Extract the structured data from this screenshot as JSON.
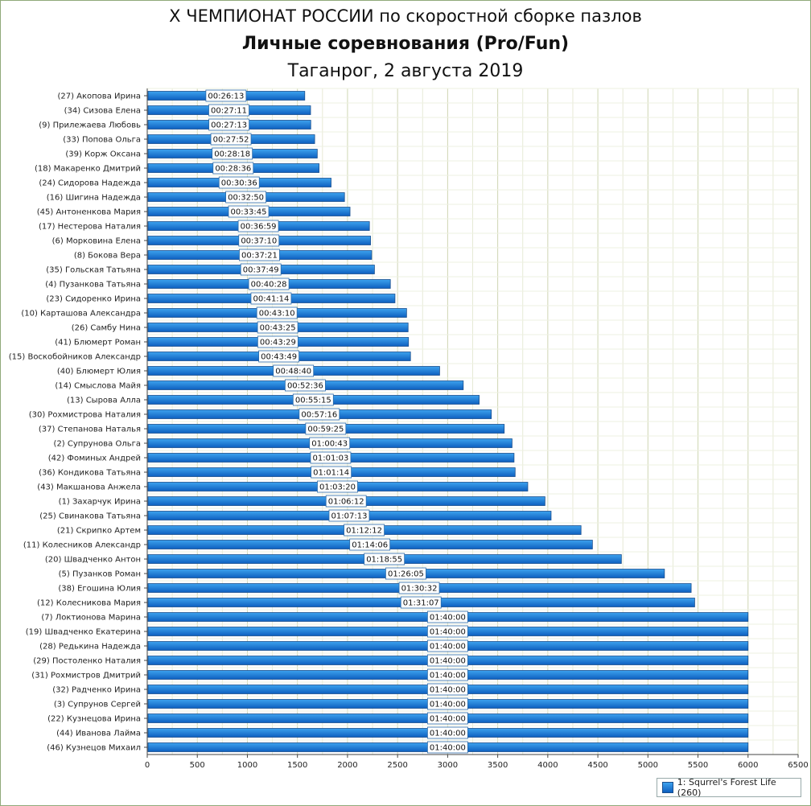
{
  "header": {
    "title": "X ЧЕМПИОНАТ РОССИИ по скоростной сборке пазлов",
    "subtitle": "Личные соревнования (Pro/Fun)",
    "place_date": "Таганрог, 2 августа 2019"
  },
  "legend": {
    "label": "1: Squrrel's Forest Life (260)"
  },
  "colors": {
    "bar_top": "#3da2ee",
    "bar_bottom": "#0e5fbf",
    "bar_border": "#1a4f8e",
    "grid": "#d6dcc0",
    "frame": "#8fa97a"
  },
  "chart_data": {
    "type": "bar",
    "orientation": "horizontal",
    "title": "",
    "xlabel": "",
    "ylabel": "",
    "xlim": [
      0,
      6500
    ],
    "x_ticks": [
      0,
      500,
      1000,
      1500,
      2000,
      2500,
      3000,
      3500,
      4000,
      4500,
      5000,
      5500,
      6000,
      6500
    ],
    "grid": true,
    "legend_position": "bottom-right",
    "series_name": "1: Squrrel's Forest Life (260)",
    "categories": [
      "(27) Акопова Ирина",
      "(34) Сизова Елена",
      "(9) Прилежаева Любовь",
      "(33) Попова Ольга",
      "(39) Корж Оксана",
      "(18) Макаренко Дмитрий",
      "(24) Сидорова Надежда",
      "(16) Шигина Надежда",
      "(45) Антоненкова Мария",
      "(17) Нестерова Наталия",
      "(6) Морковина Елена",
      "(8) Бокова Вера",
      "(35) Гольская Татьяна",
      "(4) Пузанкова Татьяна",
      "(23) Сидоренко Ирина",
      "(10) Карташова Александра",
      "(26) Самбу Нина",
      "(41) Блюмерт Роман",
      "(15) Воскобойников Александр",
      "(40) Блюмерт Юлия",
      "(14) Смыслова Майя",
      "(13) Сырова Алла",
      "(30) Рохмистрова Наталия",
      "(37) Степанова Наталья",
      "(2) Супрунова Ольга",
      "(42) Фоминых Андрей",
      "(36) Кондикова Татьяна",
      "(43) Макшанова Анжела",
      "(1) Захарчук Ирина",
      "(25) Свинакова Татьяна",
      "(21) Скрипко Артем",
      "(11) Колесников Александр",
      "(20) Швадченко Антон",
      "(5) Пузанков Роман",
      "(38) Егошина Юлия",
      "(12) Колесникова Мария",
      "(7) Локтионова Марина",
      "(19) Швадченко Екатерина",
      "(28) Редькина Надежда",
      "(29) Постоленко Наталия",
      "(31) Рохмистров Дмитрий",
      "(32) Радченко Ирина",
      "(3) Супрунов Сергей",
      "(22) Кузнецова Ирина",
      "(44) Иванова Лайма",
      "(46) Кузнецов Михаил"
    ],
    "values": [
      1573,
      1631,
      1633,
      1672,
      1698,
      1716,
      1836,
      1970,
      2025,
      2219,
      2230,
      2241,
      2269,
      2428,
      2474,
      2590,
      2605,
      2609,
      2629,
      2920,
      3156,
      3315,
      3436,
      3565,
      3643,
      3663,
      3674,
      3800,
      3972,
      4033,
      4332,
      4446,
      4735,
      5165,
      5432,
      5467,
      6000,
      6000,
      6000,
      6000,
      6000,
      6000,
      6000,
      6000,
      6000,
      6000
    ],
    "data_labels": [
      "00:26:13",
      "00:27:11",
      "00:27:13",
      "00:27:52",
      "00:28:18",
      "00:28:36",
      "00:30:36",
      "00:32:50",
      "00:33:45",
      "00:36:59",
      "00:37:10",
      "00:37:21",
      "00:37:49",
      "00:40:28",
      "00:41:14",
      "00:43:10",
      "00:43:25",
      "00:43:29",
      "00:43:49",
      "00:48:40",
      "00:52:36",
      "00:55:15",
      "00:57:16",
      "00:59:25",
      "01:00:43",
      "01:01:03",
      "01:01:14",
      "01:03:20",
      "01:06:12",
      "01:07:13",
      "01:12:12",
      "01:14:06",
      "01:18:55",
      "01:26:05",
      "01:30:32",
      "01:31:07",
      "01:40:00",
      "01:40:00",
      "01:40:00",
      "01:40:00",
      "01:40:00",
      "01:40:00",
      "01:40:00",
      "01:40:00",
      "01:40:00",
      "01:40:00"
    ]
  }
}
